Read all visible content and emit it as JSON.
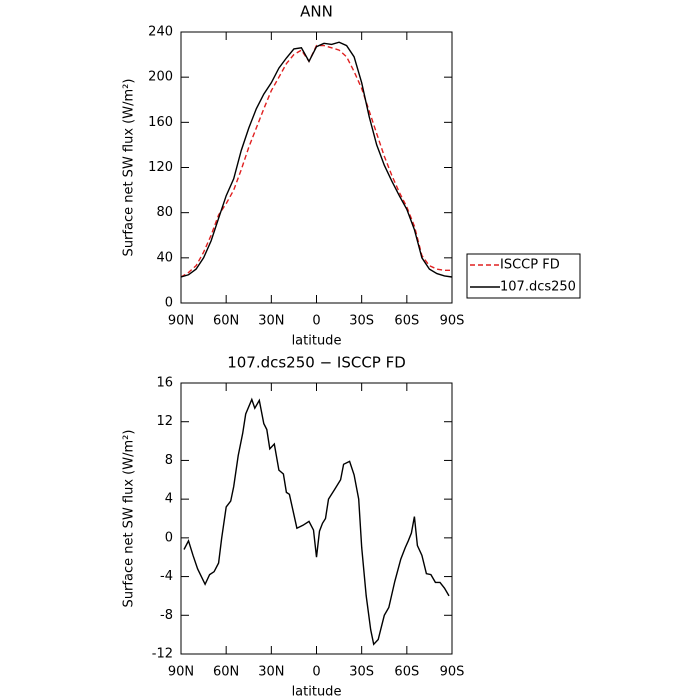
{
  "chart_data": [
    {
      "type": "line",
      "title": "ANN",
      "xlabel": "latitude",
      "ylabel": "Surface net SW flux (W/m²)",
      "x": [
        90,
        85,
        80,
        75,
        70,
        65,
        60,
        55,
        50,
        45,
        40,
        35,
        30,
        25,
        20,
        15,
        10,
        5,
        0,
        -5,
        -10,
        -15,
        -20,
        -25,
        -30,
        -35,
        -40,
        -45,
        -50,
        -55,
        -60,
        -65,
        -70,
        -75,
        -80,
        -85,
        -90
      ],
      "series": [
        {
          "name": "ISCCP FD",
          "color": "#e02020",
          "linestyle": "dashed",
          "values": [
            23,
            27,
            33,
            45,
            60,
            78,
            88,
            100,
            118,
            138,
            155,
            172,
            188,
            200,
            212,
            220,
            224,
            214,
            228,
            228,
            226,
            224,
            218,
            205,
            190,
            170,
            150,
            130,
            113,
            98,
            85,
            68,
            42,
            33,
            30,
            29,
            29
          ]
        },
        {
          "name": "107.dcs250",
          "color": "#000000",
          "linestyle": "solid",
          "values": [
            23,
            25,
            30,
            40,
            55,
            75,
            95,
            110,
            135,
            155,
            172,
            185,
            195,
            208,
            217,
            225,
            226,
            214,
            227,
            230,
            229,
            231,
            228,
            218,
            195,
            165,
            140,
            122,
            108,
            95,
            83,
            65,
            40,
            30,
            26,
            24,
            23
          ]
        }
      ],
      "xlim": [
        90,
        -90
      ],
      "xticks": [
        {
          "value": 90,
          "label": "90N"
        },
        {
          "value": 60,
          "label": "60N"
        },
        {
          "value": 30,
          "label": "30N"
        },
        0,
        {
          "value": -30,
          "label": "30S"
        },
        {
          "value": -60,
          "label": "60S"
        },
        {
          "value": -90,
          "label": "90S"
        }
      ],
      "ylim": [
        0,
        240
      ],
      "yticks": [
        0,
        40,
        80,
        120,
        160,
        200,
        240
      ],
      "legend": "outside-right"
    },
    {
      "type": "line",
      "title": "107.dcs250 − ISCCP FD",
      "xlabel": "latitude",
      "ylabel": "Surface net SW flux (W/m²)",
      "x": [
        88,
        85,
        82,
        79,
        74,
        71,
        68,
        65,
        63,
        60,
        57,
        55,
        52,
        49,
        47,
        43,
        41,
        38,
        35,
        33,
        31,
        28,
        25,
        22,
        20,
        18,
        13,
        9,
        5,
        2,
        0,
        -2,
        -4,
        -6,
        -8,
        -12,
        -16,
        -18,
        -22,
        -25,
        -28,
        -30,
        -33,
        -36,
        -38,
        -41,
        -45,
        -48,
        -52,
        -56,
        -59,
        -61,
        -63,
        -65,
        -67,
        -70,
        -73,
        -76,
        -79,
        -82,
        -85,
        -88
      ],
      "values": [
        -1.2,
        -0.3,
        -1.8,
        -3.2,
        -4.8,
        -3.8,
        -3.5,
        -2.6,
        0,
        3.2,
        3.8,
        5.3,
        8.5,
        10.8,
        12.8,
        14.3,
        13.4,
        14.2,
        11.8,
        11.2,
        9.2,
        9.7,
        7,
        6.6,
        4.7,
        4.5,
        1,
        1.3,
        1.7,
        0.8,
        -2,
        0.7,
        1.5,
        2,
        4,
        5,
        6,
        7.6,
        7.9,
        6.5,
        4,
        -1,
        -6,
        -9.5,
        -11,
        -10.5,
        -8,
        -7.2,
        -4.5,
        -2.2,
        -1,
        -0.3,
        0.5,
        2.2,
        -0.8,
        -1.8,
        -3.7,
        -3.8,
        -4.6,
        -4.6,
        -5.2,
        -6
      ],
      "color": "#000000",
      "xlim": [
        90,
        -90
      ],
      "xticks": [
        {
          "value": 90,
          "label": "90N"
        },
        {
          "value": 60,
          "label": "60N"
        },
        {
          "value": 30,
          "label": "30N"
        },
        0,
        {
          "value": -30,
          "label": "30S"
        },
        {
          "value": -60,
          "label": "60S"
        },
        {
          "value": -90,
          "label": "90S"
        }
      ],
      "ylim": [
        -12,
        16
      ],
      "yticks": [
        -12,
        -8,
        -4,
        0,
        4,
        8,
        12,
        16
      ]
    }
  ]
}
